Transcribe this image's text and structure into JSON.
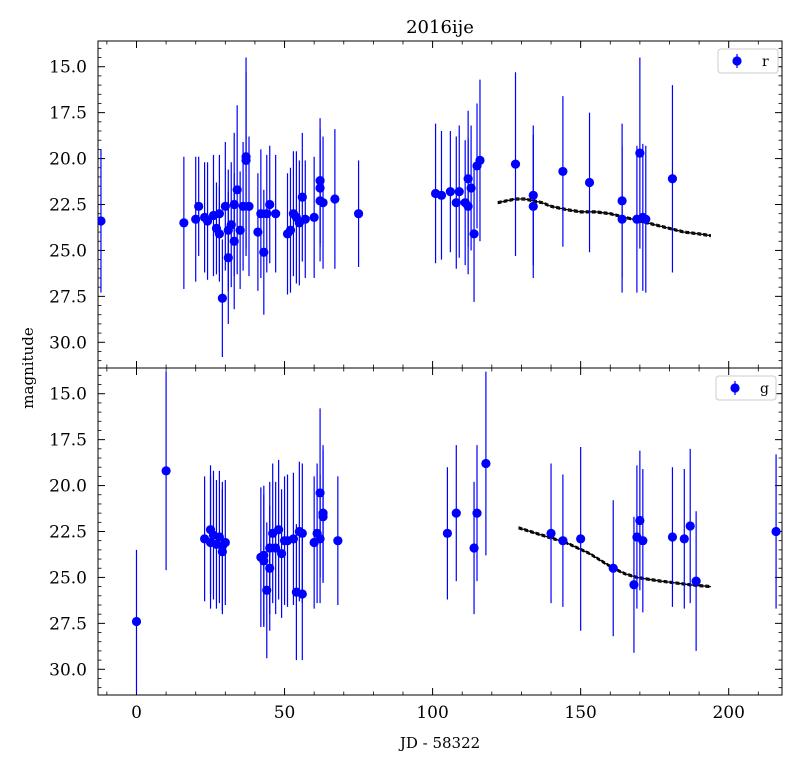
{
  "chart_data": {
    "type": "scatter",
    "title": "2016ije",
    "xlabel": "JD - 58322",
    "ylabel": "magnitude",
    "xlim": [
      -13,
      218
    ],
    "ylim_inverted": [
      31.4,
      13.6
    ],
    "x_ticks": [
      0,
      50,
      100,
      150,
      200
    ],
    "y_ticks": [
      15.0,
      17.5,
      20.0,
      22.5,
      25.0,
      27.5,
      30.0
    ],
    "x_tick_labels": [
      "0",
      "50",
      "100",
      "150",
      "200"
    ],
    "y_tick_labels": [
      "15.0",
      "17.5",
      "20.0",
      "22.5",
      "25.0",
      "27.5",
      "30.0"
    ],
    "grid": false,
    "legend_position": "top-right",
    "marker_color": "#0000ff",
    "model_color": "#000000",
    "panels": [
      {
        "filter": "r",
        "points": [
          [
            -12,
            23.4,
            3.9
          ],
          [
            16,
            23.5,
            3.6
          ],
          [
            20,
            23.3,
            3.4
          ],
          [
            21,
            22.6,
            2.7
          ],
          [
            23,
            23.2,
            3.0
          ],
          [
            24,
            23.4,
            3.2
          ],
          [
            26,
            23.1,
            3.3
          ],
          [
            27,
            23.8,
            2.5
          ],
          [
            28,
            24.1,
            2.6
          ],
          [
            28,
            23.0,
            3.2
          ],
          [
            29,
            27.6,
            3.2
          ],
          [
            30,
            22.6,
            3.5
          ],
          [
            31,
            23.9,
            3.3
          ],
          [
            31,
            25.4,
            3.6
          ],
          [
            32,
            23.6,
            3.4
          ],
          [
            33,
            22.5,
            3.9
          ],
          [
            33,
            24.5,
            3.7
          ],
          [
            34,
            21.7,
            4.6
          ],
          [
            35,
            23.9,
            3.2
          ],
          [
            36,
            22.6,
            3.5
          ],
          [
            37,
            19.9,
            5.4
          ],
          [
            37,
            20.1,
            4.8
          ],
          [
            38,
            22.6,
            3.8
          ],
          [
            41,
            24.0,
            3.2
          ],
          [
            42,
            23.0,
            3.5
          ],
          [
            43,
            25.1,
            3.4
          ],
          [
            44,
            23.0,
            3.2
          ],
          [
            45,
            22.5,
            3.2
          ],
          [
            47,
            23.0,
            3.2
          ],
          [
            51,
            24.1,
            3.3
          ],
          [
            52,
            23.9,
            3.4
          ],
          [
            53,
            23.0,
            3.4
          ],
          [
            54,
            23.2,
            3.6
          ],
          [
            55,
            23.5,
            3.4
          ],
          [
            56,
            22.1,
            3.5
          ],
          [
            57,
            23.3,
            3.2
          ],
          [
            60,
            23.2,
            3.3
          ],
          [
            62,
            22.3,
            3.3
          ],
          [
            62,
            21.2,
            3.4
          ],
          [
            62,
            21.6,
            3.2
          ],
          [
            63,
            22.4,
            3.6
          ],
          [
            67,
            22.2,
            3.8
          ],
          [
            75,
            23.0,
            2.9
          ],
          [
            101,
            21.9,
            3.8
          ],
          [
            103,
            22.0,
            3.5
          ],
          [
            106,
            21.8,
            3.3
          ],
          [
            108,
            22.4,
            3.6
          ],
          [
            109,
            21.8,
            3.6
          ],
          [
            111,
            22.4,
            3.4
          ],
          [
            112,
            22.6,
            3.7
          ],
          [
            112,
            21.1,
            3.7
          ],
          [
            113,
            21.6,
            3.4
          ],
          [
            114,
            24.1,
            3.7
          ],
          [
            115,
            20.4,
            3.4
          ],
          [
            116,
            20.1,
            4.4
          ],
          [
            128,
            20.3,
            5.0
          ],
          [
            134,
            22.0,
            3.8
          ],
          [
            134,
            22.6,
            3.9
          ],
          [
            144,
            20.7,
            4.1
          ],
          [
            153,
            21.3,
            3.8
          ],
          [
            164,
            22.3,
            4.2
          ],
          [
            164,
            23.3,
            4.0
          ],
          [
            169,
            23.3,
            4.0
          ],
          [
            170,
            19.7,
            5.2
          ],
          [
            171,
            23.2,
            4.0
          ],
          [
            172,
            23.3,
            4.0
          ],
          [
            181,
            21.1,
            5.1
          ]
        ],
        "model": [
          [
            122,
            22.4
          ],
          [
            125,
            22.3
          ],
          [
            128,
            22.2
          ],
          [
            131,
            22.2
          ],
          [
            134,
            22.3
          ],
          [
            137,
            22.4
          ],
          [
            140,
            22.6
          ],
          [
            143,
            22.7
          ],
          [
            146,
            22.8
          ],
          [
            150,
            22.9
          ],
          [
            155,
            22.9
          ],
          [
            160,
            23.0
          ],
          [
            165,
            23.2
          ],
          [
            170,
            23.4
          ],
          [
            175,
            23.6
          ],
          [
            180,
            23.8
          ],
          [
            185,
            24.0
          ],
          [
            190,
            24.1
          ],
          [
            194,
            24.2
          ]
        ]
      },
      {
        "filter": "g",
        "points": [
          [
            0,
            27.4,
            3.9
          ],
          [
            10,
            19.2,
            5.4
          ],
          [
            23,
            22.9,
            3.4
          ],
          [
            25,
            23.1,
            3.6
          ],
          [
            25,
            22.4,
            3.5
          ],
          [
            26,
            22.7,
            3.5
          ],
          [
            27,
            23.2,
            3.5
          ],
          [
            28,
            22.8,
            3.6
          ],
          [
            29,
            23.3,
            3.5
          ],
          [
            29,
            23.6,
            3.4
          ],
          [
            30,
            23.1,
            3.4
          ],
          [
            42,
            23.9,
            3.8
          ],
          [
            43,
            24.1,
            3.6
          ],
          [
            43,
            23.8,
            3.8
          ],
          [
            44,
            25.7,
            3.7
          ],
          [
            45,
            23.4,
            3.6
          ],
          [
            45,
            24.5,
            3.4
          ],
          [
            46,
            22.6,
            3.8
          ],
          [
            47,
            23.4,
            3.6
          ],
          [
            48,
            22.4,
            3.8
          ],
          [
            49,
            23.7,
            3.5
          ],
          [
            50,
            23.0,
            3.5
          ],
          [
            51,
            23.0,
            3.6
          ],
          [
            53,
            22.9,
            3.6
          ],
          [
            54,
            25.8,
            3.7
          ],
          [
            55,
            22.5,
            3.8
          ],
          [
            56,
            25.9,
            3.6
          ],
          [
            56,
            22.6,
            3.8
          ],
          [
            60,
            23.1,
            3.6
          ],
          [
            61,
            22.6,
            3.8
          ],
          [
            62,
            20.4,
            4.6
          ],
          [
            62,
            22.9,
            3.5
          ],
          [
            63,
            21.5,
            3.7
          ],
          [
            63,
            21.7,
            3.6
          ],
          [
            68,
            23.0,
            3.5
          ],
          [
            105,
            22.6,
            3.6
          ],
          [
            108,
            21.5,
            3.7
          ],
          [
            114,
            23.4,
            3.6
          ],
          [
            115,
            21.5,
            3.7
          ],
          [
            118,
            18.8,
            5.0
          ],
          [
            140,
            22.6,
            3.8
          ],
          [
            144,
            23.0,
            3.6
          ],
          [
            150,
            22.9,
            5.0
          ],
          [
            161,
            24.5,
            3.7
          ],
          [
            168,
            25.4,
            3.7
          ],
          [
            169,
            22.8,
            3.9
          ],
          [
            170,
            21.9,
            3.8
          ],
          [
            171,
            23.0,
            3.9
          ],
          [
            181,
            22.8,
            3.8
          ],
          [
            185,
            22.9,
            3.8
          ],
          [
            187,
            22.2,
            4.2
          ],
          [
            189,
            25.2,
            3.8
          ],
          [
            216,
            22.5,
            4.2
          ]
        ],
        "model": [
          [
            129,
            22.3
          ],
          [
            133,
            22.5
          ],
          [
            137,
            22.7
          ],
          [
            141,
            22.9
          ],
          [
            145,
            23.1
          ],
          [
            149,
            23.4
          ],
          [
            153,
            23.7
          ],
          [
            157,
            24.1
          ],
          [
            161,
            24.5
          ],
          [
            165,
            24.8
          ],
          [
            169,
            25.0
          ],
          [
            173,
            25.1
          ],
          [
            177,
            25.2
          ],
          [
            182,
            25.3
          ],
          [
            187,
            25.4
          ],
          [
            194,
            25.5
          ]
        ]
      }
    ]
  }
}
